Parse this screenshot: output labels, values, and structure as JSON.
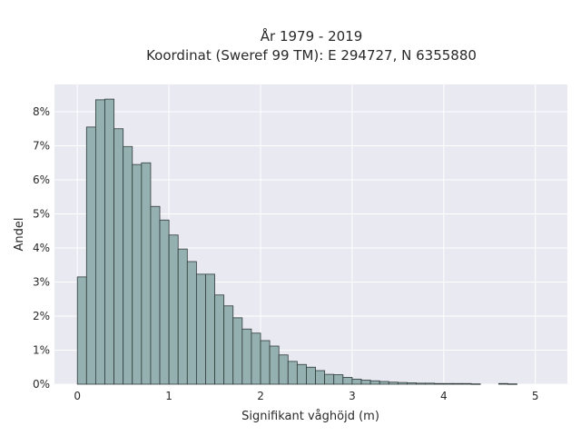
{
  "chart_data": {
    "type": "bar",
    "title_line1": "År 1979 - 2019",
    "title_line2": "Koordinat (Sweref 99 TM): E 294727, N 6355880",
    "xlabel": "Signifikant våghöjd (m)",
    "ylabel": "Andel",
    "xlim": [
      -0.25,
      5.35
    ],
    "ylim": [
      0,
      8.8
    ],
    "bin_width": 0.1,
    "bin_start": 0.0,
    "x_ticks": [
      0,
      1,
      2,
      3,
      4,
      5
    ],
    "x_tick_labels": [
      "0",
      "1",
      "2",
      "3",
      "4",
      "5"
    ],
    "y_ticks": [
      0,
      1,
      2,
      3,
      4,
      5,
      6,
      7,
      8
    ],
    "y_tick_labels": [
      "0%",
      "1%",
      "2%",
      "3%",
      "4%",
      "5%",
      "6%",
      "7%",
      "8%"
    ],
    "values": [
      3.15,
      7.55,
      8.35,
      8.37,
      7.5,
      6.98,
      6.45,
      6.5,
      5.22,
      4.82,
      4.38,
      3.97,
      3.6,
      3.23,
      3.23,
      2.62,
      2.3,
      1.95,
      1.62,
      1.5,
      1.28,
      1.12,
      0.86,
      0.67,
      0.58,
      0.5,
      0.4,
      0.29,
      0.28,
      0.2,
      0.15,
      0.12,
      0.1,
      0.08,
      0.06,
      0.05,
      0.04,
      0.03,
      0.03,
      0.02,
      0.02,
      0.02,
      0.02,
      0.01,
      0.0,
      0.0,
      0.02,
      0.01
    ],
    "grid": true,
    "colors": {
      "plot_background": "#e9e9f1",
      "bar_fill": "#95b0b0",
      "bar_edge": "#2f3b3b",
      "grid": "#ffffff"
    }
  }
}
